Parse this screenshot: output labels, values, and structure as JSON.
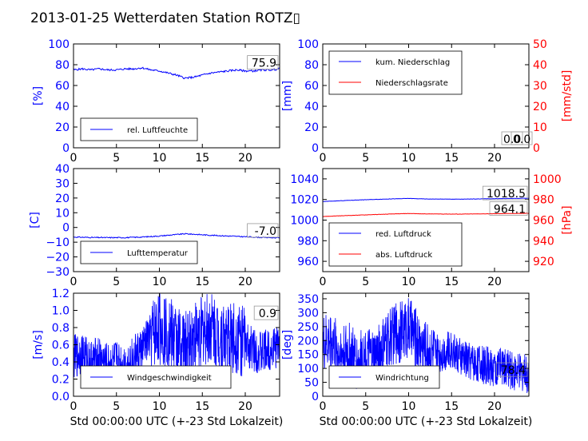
{
  "title": "2013-01-25 Wetterdaten Station ROTZ▯",
  "colors": {
    "blue": "#0000ff",
    "red": "#ff0000",
    "black": "#000000"
  },
  "chart_data": [
    {
      "id": "humidity",
      "type": "line",
      "xlim": [
        0,
        24
      ],
      "ylim": [
        0,
        100
      ],
      "xticks": [
        "0",
        "5",
        "10",
        "15",
        "20"
      ],
      "yticks": [
        "0",
        "20",
        "40",
        "60",
        "80",
        "100"
      ],
      "ylabel": "[%]",
      "xlabel": "",
      "legend_position": "lower-left",
      "series": [
        {
          "name": "rel. Luftfeuchte",
          "color": "#0000ff",
          "x": [
            0,
            1,
            2,
            3,
            4,
            5,
            6,
            7,
            8,
            9,
            10,
            11,
            12,
            13,
            14,
            15,
            16,
            17,
            18,
            19,
            20,
            21,
            22,
            23,
            24
          ],
          "y": [
            75,
            76,
            75,
            76,
            75,
            75,
            76,
            76,
            77,
            75,
            74,
            72,
            70,
            67,
            68,
            70,
            72,
            73,
            74,
            75,
            74,
            74,
            75,
            75,
            76
          ]
        }
      ],
      "annotation": "75.9"
    },
    {
      "id": "precip",
      "type": "line",
      "xlim": [
        0,
        24
      ],
      "ylim": [
        0,
        100
      ],
      "y2lim": [
        0,
        50
      ],
      "xticks": [
        "0",
        "5",
        "10",
        "15",
        "20"
      ],
      "yticks": [
        "0",
        "20",
        "40",
        "60",
        "80",
        "100"
      ],
      "y2ticks": [
        "0",
        "10",
        "20",
        "30",
        "40",
        "50"
      ],
      "ylabel": "[mm]",
      "y2label": "[mm/std]",
      "xlabel": "",
      "legend_position": "upper-left",
      "series": [
        {
          "name": "kum. Niederschlag",
          "color": "#0000ff",
          "axis": "left",
          "x": [
            0,
            24
          ],
          "y": [
            0,
            0
          ]
        },
        {
          "name": "Niederschlagsrate",
          "color": "#ff0000",
          "axis": "right",
          "x": [
            0,
            24
          ],
          "y": [
            0,
            0
          ]
        }
      ],
      "annotations": [
        "0.0",
        "0.0"
      ]
    },
    {
      "id": "temperature",
      "type": "line",
      "xlim": [
        0,
        24
      ],
      "ylim": [
        -30,
        40
      ],
      "xticks": [
        "0",
        "5",
        "10",
        "15",
        "20"
      ],
      "yticks": [
        "−30",
        "−20",
        "−10",
        "0",
        "10",
        "20",
        "30",
        "40"
      ],
      "ylabel": "[C]",
      "xlabel": "",
      "legend_position": "lower-left",
      "series": [
        {
          "name": "Lufttemperatur",
          "color": "#0000ff",
          "x": [
            0,
            2,
            4,
            6,
            8,
            10,
            11,
            12,
            13,
            14,
            16,
            18,
            20,
            22,
            24
          ],
          "y": [
            -6.5,
            -6.8,
            -6.9,
            -6.9,
            -6.5,
            -5.8,
            -5.3,
            -4.8,
            -4.3,
            -4.6,
            -5.3,
            -5.8,
            -6.3,
            -6.8,
            -7.0
          ]
        }
      ],
      "annotation": "-7.0"
    },
    {
      "id": "pressure",
      "type": "line",
      "xlim": [
        0,
        24
      ],
      "ylim": [
        950,
        1050
      ],
      "y2lim": [
        910,
        1010
      ],
      "xticks": [
        "0",
        "5",
        "10",
        "15",
        "20"
      ],
      "yticks": [
        "960",
        "980",
        "1000",
        "1020",
        "1040"
      ],
      "y2ticks": [
        "920",
        "940",
        "960",
        "980",
        "1000"
      ],
      "ylabel": "",
      "y2label": "[hPa]",
      "xlabel": "",
      "legend_position": "lower-left",
      "series": [
        {
          "name": "red. Luftdruck",
          "color": "#0000ff",
          "axis": "left",
          "x": [
            0,
            4,
            8,
            10,
            12,
            16,
            20,
            24
          ],
          "y": [
            1018,
            1019.5,
            1020.6,
            1021,
            1020.5,
            1020.3,
            1020.8,
            1021.2
          ]
        },
        {
          "name": "abs. Luftdruck",
          "color": "#ff0000",
          "axis": "right",
          "x": [
            0,
            4,
            8,
            10,
            12,
            16,
            20,
            24
          ],
          "y": [
            963.5,
            964.8,
            965.9,
            966.4,
            966.0,
            965.8,
            966.2,
            966.6
          ]
        }
      ],
      "annotations": [
        "1018.5",
        "964.1"
      ]
    },
    {
      "id": "windspeed",
      "type": "line",
      "xlim": [
        0,
        24
      ],
      "ylim": [
        0,
        1.2
      ],
      "xticks": [
        "0",
        "5",
        "10",
        "15",
        "20"
      ],
      "yticks": [
        "0.0",
        "0.2",
        "0.4",
        "0.6",
        "0.8",
        "1.0",
        "1.2"
      ],
      "ylabel": "[m/s]",
      "xlabel": "Std 00:00:00 UTC (+-23 Std Lokalzeit)",
      "legend_position": "lower-left",
      "series": [
        {
          "name": "Windgeschwindigkeit",
          "color": "#0000ff",
          "x": [
            0,
            1,
            2,
            3,
            4,
            5,
            6,
            7,
            8,
            9,
            10,
            11,
            12,
            13,
            14,
            15,
            16,
            17,
            18,
            19,
            20,
            21,
            22,
            23,
            24
          ],
          "y": [
            0.45,
            0.5,
            0.4,
            0.45,
            0.35,
            0.4,
            0.35,
            0.45,
            0.55,
            0.7,
            0.8,
            0.75,
            0.65,
            0.55,
            0.7,
            0.75,
            0.8,
            0.7,
            0.65,
            0.7,
            0.6,
            0.55,
            0.5,
            0.55,
            0.6
          ]
        }
      ],
      "annotation": "0.9"
    },
    {
      "id": "winddir",
      "type": "line",
      "xlim": [
        0,
        24
      ],
      "ylim": [
        0,
        370
      ],
      "xticks": [
        "0",
        "5",
        "10",
        "15",
        "20"
      ],
      "yticks": [
        "0",
        "50",
        "100",
        "150",
        "200",
        "250",
        "300",
        "350"
      ],
      "ylabel": "[deg]",
      "xlabel": "Std 00:00:00 UTC (+-23 Std Lokalzeit)",
      "legend_position": "lower-left",
      "series": [
        {
          "name": "Windrichtung",
          "color": "#0000ff",
          "x": [
            0,
            1,
            2,
            3,
            4,
            5,
            6,
            7,
            8,
            9,
            10,
            11,
            12,
            13,
            14,
            15,
            16,
            17,
            18,
            19,
            20,
            21,
            22,
            23,
            24
          ],
          "y": [
            180,
            200,
            150,
            160,
            120,
            140,
            130,
            170,
            220,
            230,
            250,
            200,
            170,
            150,
            160,
            170,
            140,
            130,
            120,
            110,
            100,
            110,
            90,
            85,
            80
          ]
        }
      ],
      "annotation": "78.4"
    }
  ]
}
